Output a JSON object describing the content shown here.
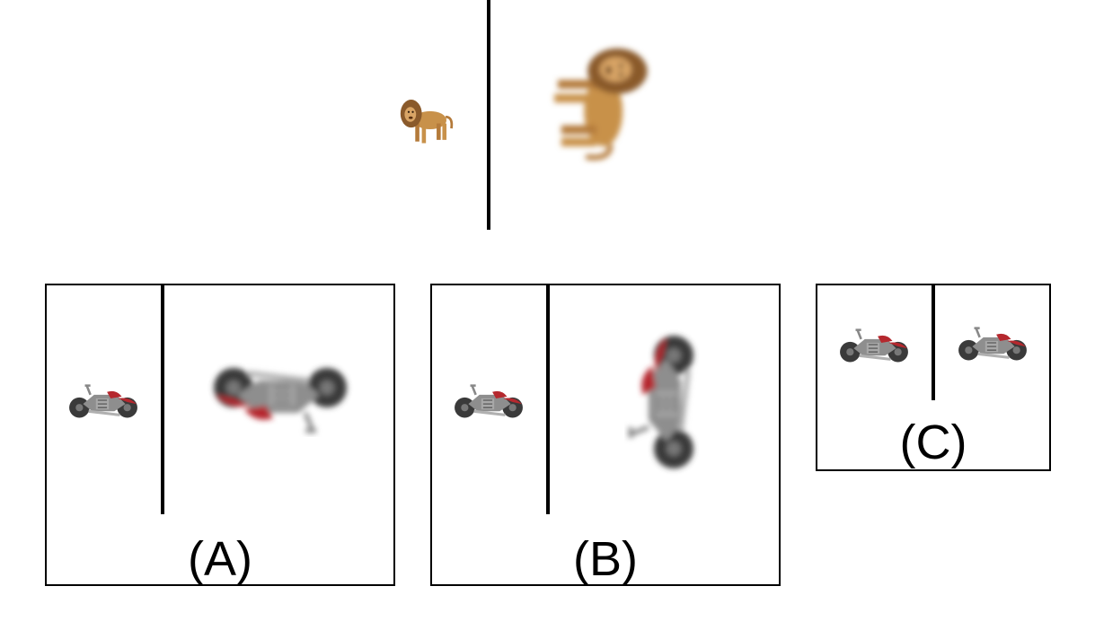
{
  "question": {
    "items": [
      "lion-small",
      "lion-large-rotated"
    ]
  },
  "options": [
    {
      "label": "(A)",
      "items": [
        "motorcycle-small",
        "motorcycle-large-upside-down"
      ]
    },
    {
      "label": "(B)",
      "items": [
        "motorcycle-small",
        "motorcycle-large-rotated-vertical"
      ]
    },
    {
      "label": "(C)",
      "items": [
        "motorcycle-small",
        "motorcycle-small"
      ]
    }
  ],
  "colors": {
    "line": "#000000",
    "lion_body": "#c8914a",
    "lion_mane": "#8a5a2b",
    "moto_wheel": "#3a3a3a",
    "moto_body": "#8e8e8e",
    "moto_accent": "#b5282e"
  }
}
